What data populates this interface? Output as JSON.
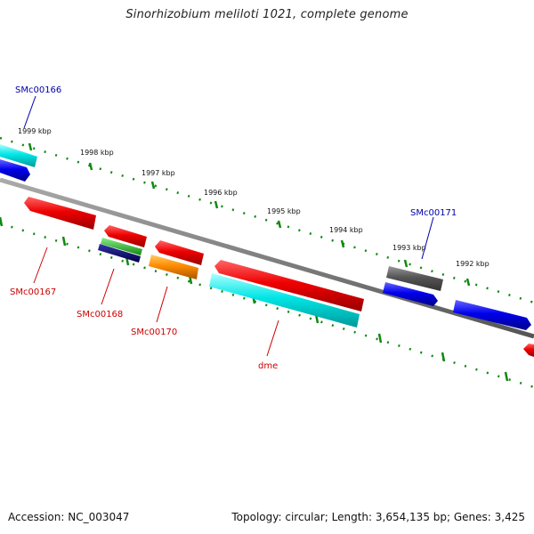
{
  "title": "Sinorhizobium meliloti 1021, complete genome",
  "accession": "Accession: NC_003047",
  "summary": "Topology: circular; Length: 3,654,135 bp; Genes: 3,425",
  "ruler_labels": [
    "1999 kbp",
    "1998 kbp",
    "1997 kbp",
    "1996 kbp",
    "1995 kbp",
    "1994 kbp",
    "1993 kbp",
    "1992 kbp"
  ],
  "genes": [
    {
      "name": "SMc00166",
      "color": "#0000aa"
    },
    {
      "name": "SMc00167",
      "color": "#cc0000"
    },
    {
      "name": "SMc00168",
      "color": "#cc0000"
    },
    {
      "name": "SMc00170",
      "color": "#cc0000"
    },
    {
      "name": "dme",
      "color": "#cc0000"
    },
    {
      "name": "SMc00171",
      "color": "#0000aa"
    }
  ],
  "feature_colors": {
    "red": "#ee0000",
    "cyan": "#00e5e5",
    "blue": "#0000ee",
    "green": "#22bb22",
    "navy": "#000066",
    "orange": "#ff8c00",
    "gray": "#555555",
    "backbone": "#777777",
    "ruler": "#118811"
  }
}
